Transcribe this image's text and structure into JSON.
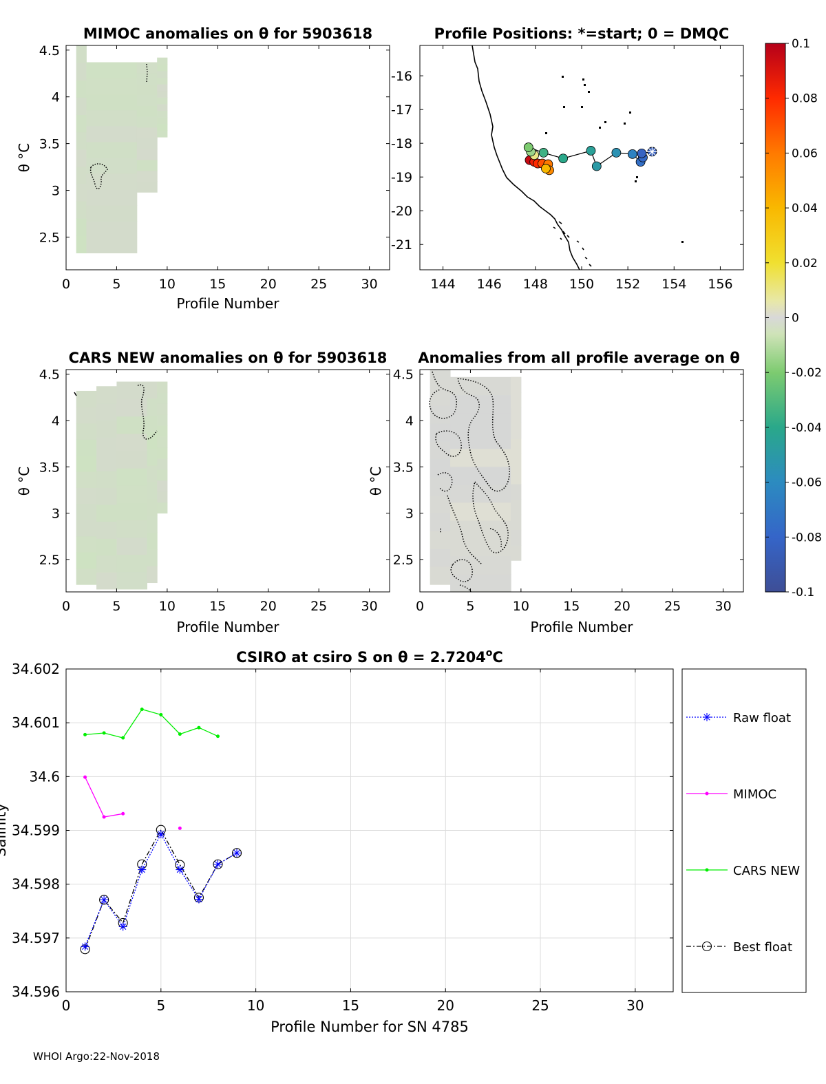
{
  "footer": "WHOI Argo:22-Nov-2018",
  "chart_data": [
    {
      "id": "mimoc",
      "type": "heatmap",
      "title": "MIMOC anomalies on θ  for 5903618",
      "xlabel": "Profile Number",
      "ylabel": "θ °C",
      "xlim": [
        0,
        32
      ],
      "ylim": [
        2.15,
        4.55
      ],
      "xticks": [
        0,
        5,
        10,
        15,
        20,
        25,
        30
      ],
      "yticks": [
        2.5,
        3,
        3.5,
        4,
        4.5
      ],
      "columns": [
        {
          "x0": 1,
          "x1": 2,
          "y0": 2.33,
          "y1": 4.55
        },
        {
          "x0": 2,
          "x1": 7,
          "y0": 2.33,
          "y1": 4.37
        },
        {
          "x0": 7,
          "x1": 9,
          "y0": 2.98,
          "y1": 4.37
        },
        {
          "x0": 9,
          "x1": 10,
          "y0": 3.57,
          "y1": 4.42
        }
      ]
    },
    {
      "id": "cars",
      "type": "heatmap",
      "title": "CARS NEW anomalies on θ for 5903618",
      "xlabel": "Profile Number",
      "ylabel": "θ °C",
      "xlim": [
        0,
        32
      ],
      "ylim": [
        2.15,
        4.55
      ],
      "xticks": [
        0,
        5,
        10,
        15,
        20,
        25,
        30
      ],
      "yticks": [
        2.5,
        3,
        3.5,
        4,
        4.5
      ],
      "columns": [
        {
          "x0": 1,
          "x1": 3,
          "y0": 2.23,
          "y1": 4.32
        },
        {
          "x0": 3,
          "x1": 5,
          "y0": 2.18,
          "y1": 4.37
        },
        {
          "x0": 5,
          "x1": 8,
          "y0": 2.18,
          "y1": 4.42
        },
        {
          "x0": 8,
          "x1": 9,
          "y0": 2.25,
          "y1": 4.42
        },
        {
          "x0": 9,
          "x1": 10,
          "y0": 3.0,
          "y1": 4.42
        }
      ]
    },
    {
      "id": "map",
      "type": "scatter",
      "title": "Profile Positions: *=start; 0 = DMQC",
      "xlim": [
        143,
        157
      ],
      "ylim": [
        -21.75,
        -15.1
      ],
      "xticks": [
        144,
        146,
        148,
        150,
        152,
        154,
        156
      ],
      "yticks": [
        -16,
        -17,
        -18,
        -19,
        -20,
        -21
      ],
      "points": [
        {
          "lon": 153.05,
          "lat": -18.25,
          "v": -0.085
        },
        {
          "lon": 152.6,
          "lat": -18.3,
          "v": -0.082
        },
        {
          "lon": 152.65,
          "lat": -18.42,
          "v": -0.078
        },
        {
          "lon": 152.55,
          "lat": -18.55,
          "v": -0.075
        },
        {
          "lon": 152.2,
          "lat": -18.32,
          "v": -0.065
        },
        {
          "lon": 151.5,
          "lat": -18.28,
          "v": -0.055
        },
        {
          "lon": 150.65,
          "lat": -18.68,
          "v": -0.05
        },
        {
          "lon": 150.4,
          "lat": -18.22,
          "v": -0.045
        },
        {
          "lon": 149.2,
          "lat": -18.45,
          "v": -0.04
        },
        {
          "lon": 148.35,
          "lat": -18.28,
          "v": -0.035
        },
        {
          "lon": 147.7,
          "lat": -18.12,
          "v": -0.02
        },
        {
          "lon": 147.8,
          "lat": -18.25,
          "v": -0.015
        },
        {
          "lon": 147.95,
          "lat": -18.35,
          "v": 0.01
        },
        {
          "lon": 148.45,
          "lat": -18.75,
          "v": 0.04
        },
        {
          "lon": 148.6,
          "lat": -18.8,
          "v": 0.055
        },
        {
          "lon": 148.55,
          "lat": -18.62,
          "v": 0.06
        },
        {
          "lon": 148.3,
          "lat": -18.6,
          "v": 0.07
        },
        {
          "lon": 148.1,
          "lat": -18.6,
          "v": 0.08
        },
        {
          "lon": 147.95,
          "lat": -18.55,
          "v": 0.085
        },
        {
          "lon": 147.75,
          "lat": -18.5,
          "v": 0.095
        }
      ]
    },
    {
      "id": "colorbar",
      "type": "heatmap",
      "clim": [
        -0.1,
        0.1
      ],
      "ticks": [
        "0.1",
        "0.08",
        "0.06",
        "0.04",
        "0.02",
        "0",
        "-0.02",
        "-0.04",
        "-0.06",
        "-0.08",
        "-0.1"
      ]
    },
    {
      "id": "allavg",
      "type": "heatmap",
      "title": "Anomalies from all profile average on θ",
      "xlabel": "Profile Number",
      "ylabel": "θ °C",
      "xlim": [
        0,
        32
      ],
      "ylim": [
        2.15,
        4.55
      ],
      "xticks": [
        0,
        5,
        10,
        15,
        20,
        25,
        30
      ],
      "yticks": [
        2.5,
        3,
        3.5,
        4,
        4.5
      ],
      "columns": [
        {
          "x0": 1,
          "x1": 3,
          "y0": 2.23,
          "y1": 4.55
        },
        {
          "x0": 3,
          "x1": 9,
          "y0": 2.15,
          "y1": 4.47
        },
        {
          "x0": 9,
          "x1": 10,
          "y0": 2.49,
          "y1": 4.47
        }
      ]
    },
    {
      "id": "salinity",
      "type": "line",
      "title_main": "CSIRO at csiro S on θ = 2.7204",
      "title_unit": "o",
      "title_suffix": "C",
      "xlabel": "Profile Number for SN 4785",
      "ylabel": "Salinity",
      "xlim": [
        0,
        32
      ],
      "ylim": [
        34.596,
        34.602
      ],
      "xticks": [
        0,
        5,
        10,
        15,
        20,
        25,
        30
      ],
      "yticks": [
        34.596,
        34.597,
        34.598,
        34.599,
        34.6,
        34.601,
        34.602
      ],
      "ytick_labels": [
        "34.596",
        "34.597",
        "34.598",
        "34.599",
        "34.6",
        "34.601",
        "34.602"
      ],
      "grid": true,
      "legend_position": "right",
      "series": [
        {
          "name": "Raw float",
          "color": "#0000ff",
          "x": [
            1,
            2,
            3,
            4,
            5,
            6,
            7,
            8,
            9
          ],
          "y": [
            34.59684,
            34.59771,
            34.59721,
            34.59827,
            34.59893,
            34.59827,
            34.59772,
            34.59837,
            34.59858
          ]
        },
        {
          "name": "MIMOC",
          "color": "#ff00ff",
          "x": [
            1,
            2,
            3,
            6
          ],
          "y": [
            34.59999,
            34.59925,
            34.59931,
            34.59904
          ],
          "segments": [
            [
              0,
              2
            ]
          ]
        },
        {
          "name": "CARS NEW",
          "color": "#00ee00",
          "x": [
            1,
            2,
            3,
            4,
            5,
            6,
            7,
            8
          ],
          "y": [
            34.60078,
            34.60081,
            34.60072,
            34.60125,
            34.60115,
            34.60079,
            34.60091,
            34.60075
          ]
        },
        {
          "name": "Best float",
          "color": "#000000",
          "x": [
            1,
            2,
            3,
            4,
            5,
            6,
            7,
            8,
            9
          ],
          "y": [
            34.59679,
            34.59771,
            34.59728,
            34.59837,
            34.59901,
            34.59836,
            34.59775,
            34.59837,
            34.59858
          ]
        }
      ]
    }
  ]
}
